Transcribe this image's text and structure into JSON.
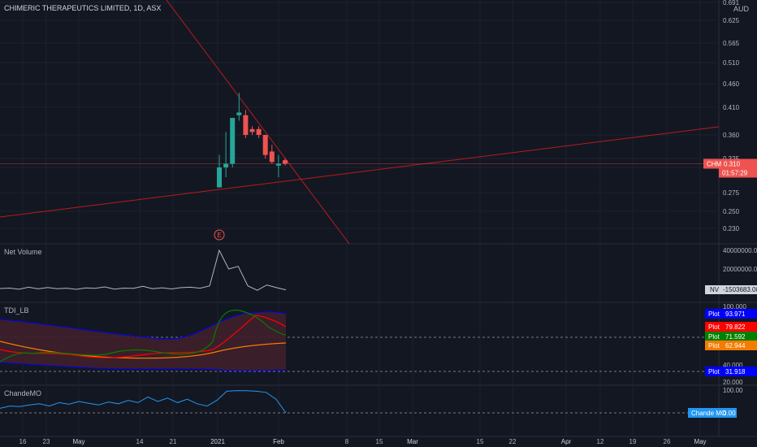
{
  "header": {
    "symbol_title": "CHIMERIC THERAPEUTICS LIMITED, 1D, ASX"
  },
  "currency": "AUD",
  "colors": {
    "background": "#131722",
    "grid": "#1e222d",
    "up": "#26a69a",
    "down": "#ef5350",
    "trendline": "#b71c1c",
    "text": "#b2b5be",
    "tdi_blue": "#0000ff",
    "tdi_red": "#ff0000",
    "tdi_green": "#008000",
    "tdi_orange": "#f57c00",
    "chande_blue": "#2196f3"
  },
  "price_axis_ticks": [
    "0.691",
    "0.625",
    "0.565",
    "0.510",
    "0.460",
    "0.410",
    "0.360",
    "0.325",
    "0.300",
    "0.275",
    "0.250",
    "0.230"
  ],
  "price_labels": {
    "symbol": "CHM",
    "price": "0.310",
    "countdown": "01:57:29"
  },
  "earnings_marker": "E",
  "x_axis_ticks": [
    "16",
    "23",
    "May",
    "14",
    "21",
    "2021",
    "Feb",
    "8",
    "15",
    "Mar",
    "15",
    "22",
    "Apr",
    "12",
    "19",
    "26",
    "May"
  ],
  "volume_pane": {
    "title": "Net Volume",
    "ticks": [
      "40000000.000",
      "20000000.000"
    ],
    "last_label": "NV",
    "last_value": "-1503683.000"
  },
  "tdi_pane": {
    "title": "TDI_LB",
    "ticks": [
      "100.000",
      "40.000",
      "20.000"
    ],
    "labels": [
      {
        "name": "Plot",
        "value": "93.971",
        "color": "#0000ff"
      },
      {
        "name": "Plot",
        "value": "79.822",
        "color": "#ff0000"
      },
      {
        "name": "Plot",
        "value": "71.592",
        "color": "#008000"
      },
      {
        "name": "Plot",
        "value": "62.944",
        "color": "#f57c00"
      },
      {
        "name": "Plot",
        "value": "31.918",
        "color": "#0000ff"
      }
    ]
  },
  "chande_pane": {
    "title": "ChandeMO",
    "ticks": [
      "100.00"
    ],
    "last_label": "Chande MO",
    "last_value": "0.00"
  },
  "chart_data": {
    "type": "candlestick",
    "title": "CHIMERIC THERAPEUTICS LIMITED, 1D, ASX",
    "candles": [
      {
        "o": 0.28,
        "h": 0.33,
        "l": 0.28,
        "c": 0.3
      },
      {
        "o": 0.3,
        "h": 0.365,
        "l": 0.29,
        "c": 0.31
      },
      {
        "o": 0.31,
        "h": 0.39,
        "l": 0.3,
        "c": 0.39
      },
      {
        "o": 0.395,
        "h": 0.44,
        "l": 0.385,
        "c": 0.4
      },
      {
        "o": 0.395,
        "h": 0.405,
        "l": 0.355,
        "c": 0.36
      },
      {
        "o": 0.37,
        "h": 0.375,
        "l": 0.36,
        "c": 0.365
      },
      {
        "o": 0.37,
        "h": 0.375,
        "l": 0.355,
        "c": 0.36
      },
      {
        "o": 0.36,
        "h": 0.36,
        "l": 0.325,
        "c": 0.33
      },
      {
        "o": 0.335,
        "h": 0.345,
        "l": 0.31,
        "c": 0.315
      },
      {
        "o": 0.305,
        "h": 0.33,
        "l": 0.29,
        "c": 0.31
      },
      {
        "o": 0.32,
        "h": 0.325,
        "l": 0.305,
        "c": 0.31
      }
    ],
    "last_price": 0.31,
    "net_volume": [
      0,
      500000,
      -800000,
      1500000,
      -400000,
      1200000,
      -300000,
      400000,
      -900000,
      700000,
      200000,
      1800000,
      -600000,
      500000,
      300000,
      2500000,
      -200000,
      800000,
      -500000,
      1000000,
      1500000,
      400000,
      3000000,
      43000000,
      22000000,
      25000000,
      3000000,
      -2000000,
      4000000,
      1000000,
      -1503683
    ],
    "chande_mo": [
      20,
      30,
      28,
      35,
      40,
      30,
      45,
      38,
      50,
      42,
      35,
      48,
      40,
      55,
      45,
      70,
      50,
      65,
      45,
      60,
      40,
      30,
      55,
      95,
      98,
      97,
      95,
      90,
      60,
      0
    ],
    "tdi_last": {
      "blue_upper": 93.971,
      "red": 79.822,
      "green": 71.592,
      "orange": 62.944,
      "blue_lower": 31.918
    }
  }
}
